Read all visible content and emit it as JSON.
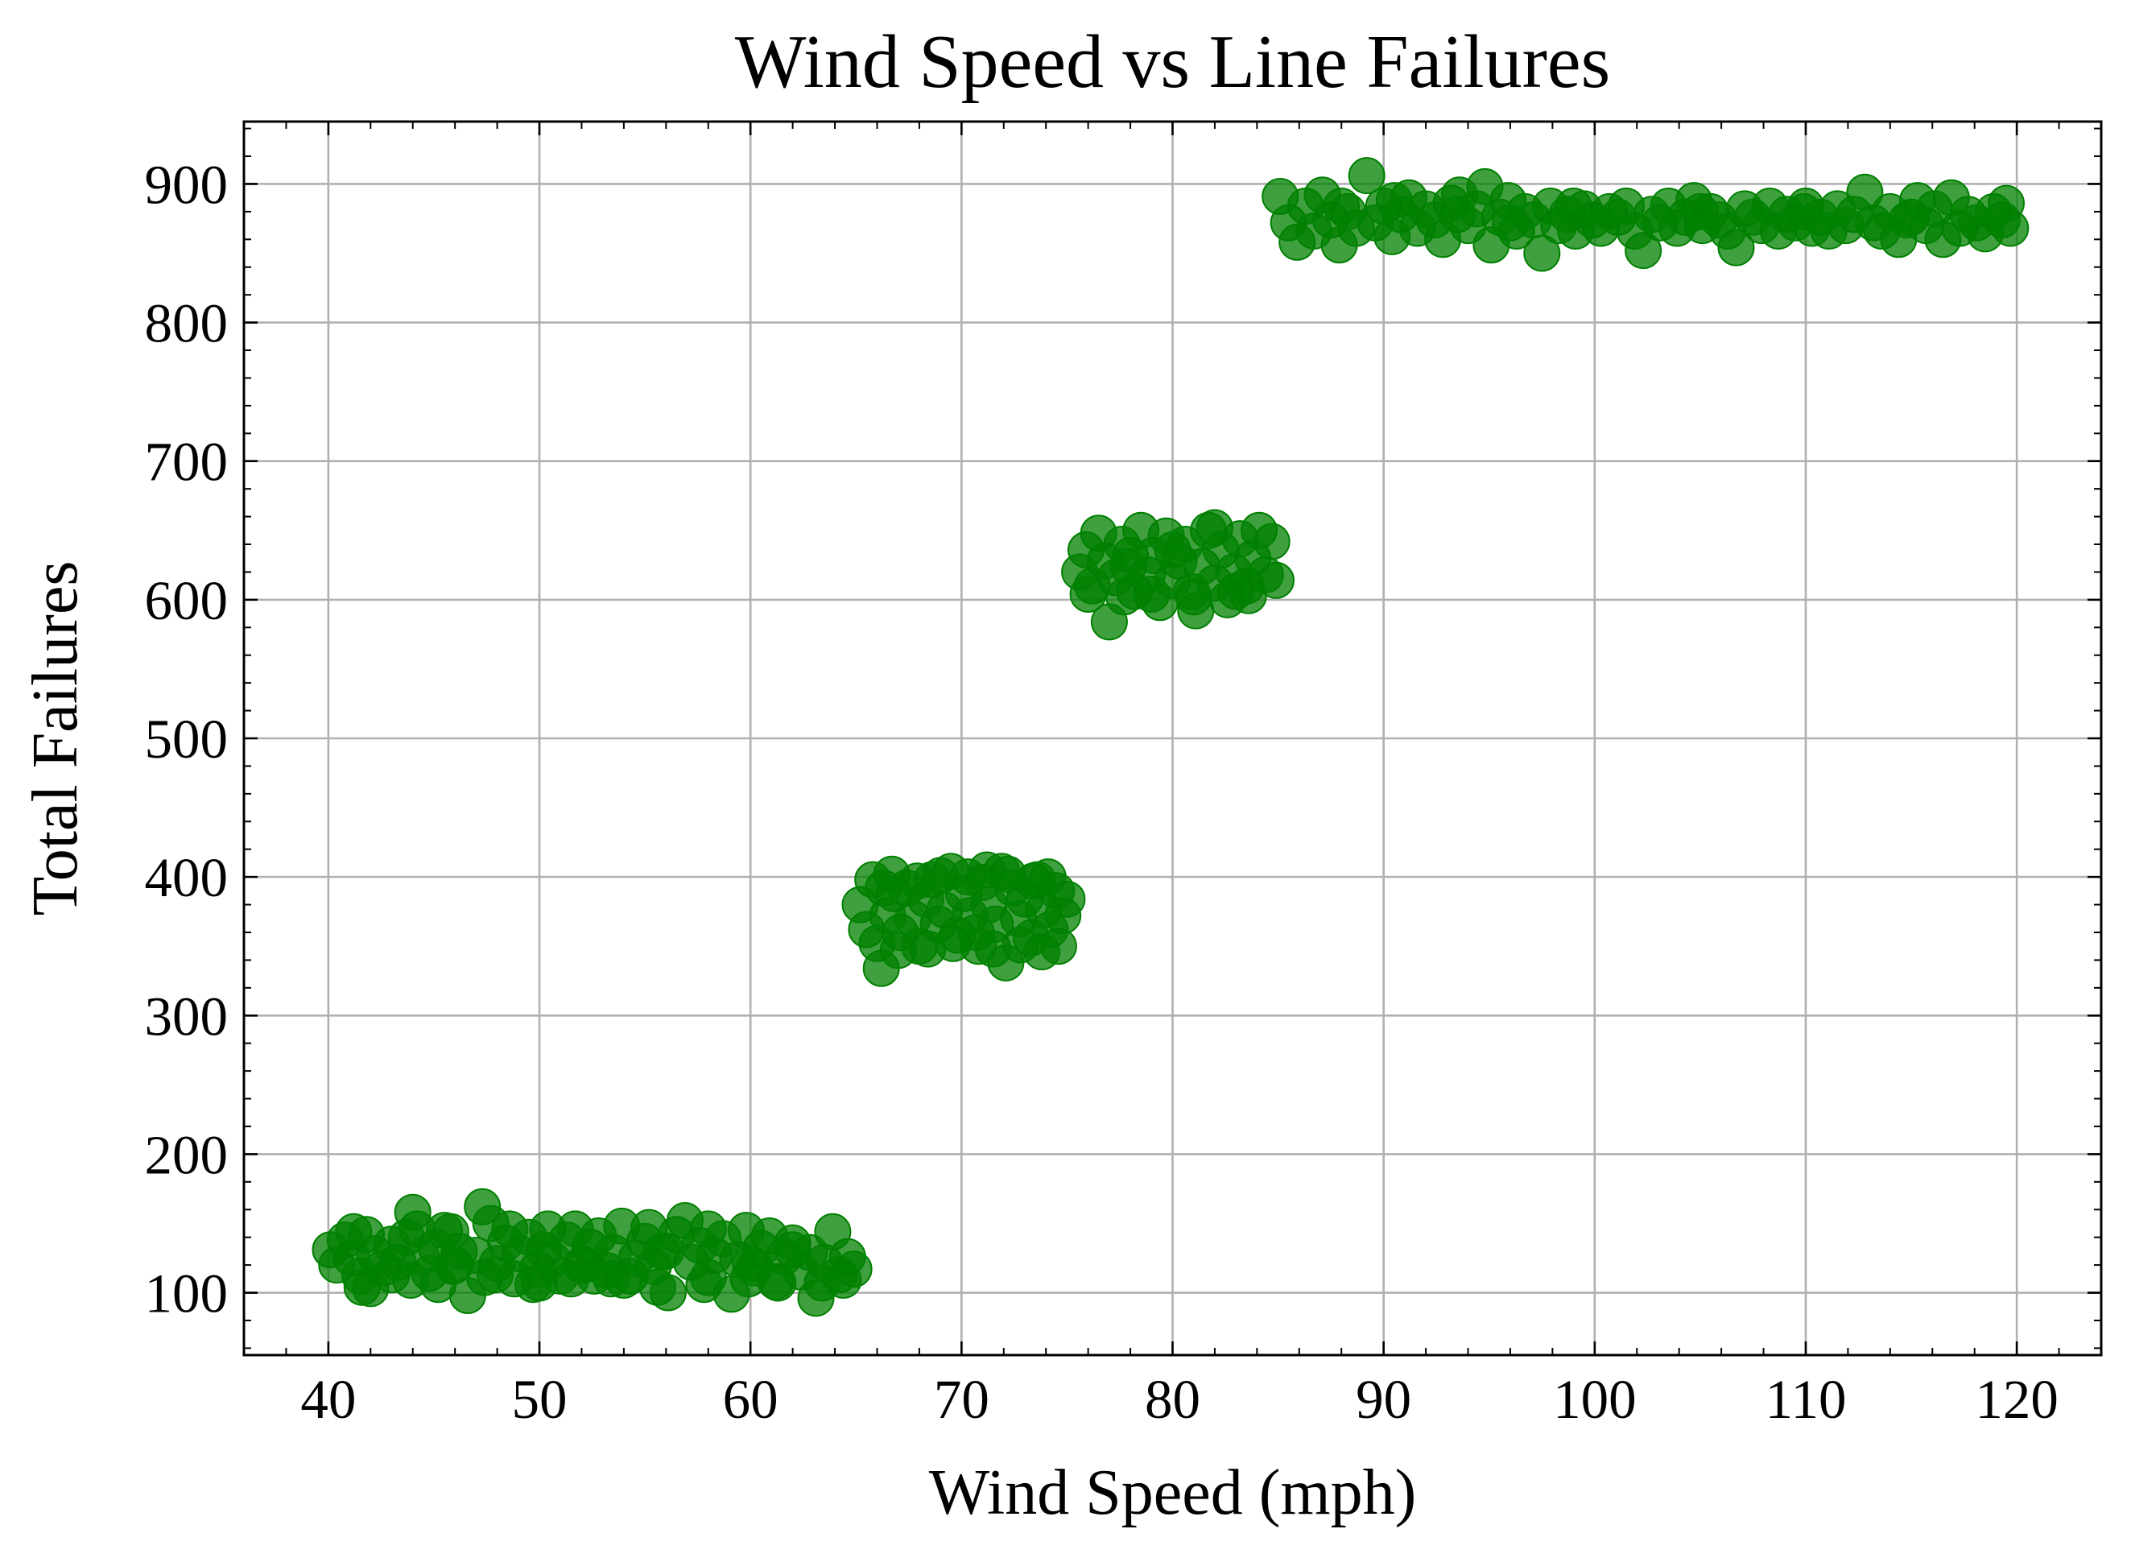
{
  "chart_data": {
    "type": "scatter",
    "title": "Wind Speed vs Line Failures",
    "xlabel": "Wind Speed (mph)",
    "ylabel": "Total Failures",
    "xlim": [
      36,
      124
    ],
    "ylim": [
      55,
      945
    ],
    "x_ticks": [
      40,
      50,
      60,
      70,
      80,
      90,
      100,
      110,
      120
    ],
    "y_ticks": [
      100,
      200,
      300,
      400,
      500,
      600,
      700,
      800,
      900
    ],
    "x_tick_labels": [
      "40",
      "50",
      "60",
      "70",
      "80",
      "90",
      "100",
      "110",
      "120"
    ],
    "y_tick_labels": [
      "100",
      "200",
      "300",
      "400",
      "500",
      "600",
      "700",
      "800",
      "900"
    ],
    "grid": true,
    "legend": "none",
    "marker_color": "#008000",
    "marker_alpha": 0.75,
    "series": [
      {
        "points": [
          [
            40.1,
            131
          ],
          [
            40.4,
            120
          ],
          [
            40.8,
            138
          ],
          [
            41.1,
            125
          ],
          [
            41.5,
            112
          ],
          [
            41.8,
            142
          ],
          [
            42.2,
            128
          ],
          [
            42.6,
            118
          ],
          [
            43.0,
            135
          ],
          [
            43.3,
            122
          ],
          [
            43.7,
            140
          ],
          [
            44.0,
            158
          ],
          [
            44.4,
            126
          ],
          [
            44.8,
            114
          ],
          [
            45.1,
            133
          ],
          [
            45.5,
            145
          ],
          [
            45.9,
            119
          ],
          [
            46.2,
            130
          ],
          [
            46.6,
            98
          ],
          [
            47.0,
            127
          ],
          [
            47.3,
            162
          ],
          [
            47.7,
            150
          ],
          [
            48.0,
            121
          ],
          [
            48.4,
            136
          ],
          [
            48.8,
            110
          ],
          [
            49.1,
            128
          ],
          [
            49.5,
            140
          ],
          [
            49.9,
            117
          ],
          [
            50.2,
            131
          ],
          [
            50.6,
            124
          ],
          [
            51.0,
            112
          ],
          [
            51.3,
            138
          ],
          [
            51.7,
            146
          ],
          [
            52.1,
            120
          ],
          [
            52.4,
            133
          ],
          [
            52.8,
            141
          ],
          [
            53.2,
            116
          ],
          [
            53.5,
            129
          ],
          [
            53.9,
            148
          ],
          [
            54.3,
            112
          ],
          [
            54.6,
            125
          ],
          [
            55.0,
            137
          ],
          [
            55.4,
            119
          ],
          [
            55.8,
            130
          ],
          [
            56.1,
            100
          ],
          [
            56.5,
            142
          ],
          [
            56.9,
            152
          ],
          [
            57.2,
            122
          ],
          [
            57.6,
            134
          ],
          [
            58.0,
            111
          ],
          [
            58.3,
            127
          ],
          [
            58.7,
            139
          ],
          [
            59.1,
            99
          ],
          [
            59.4,
            124
          ],
          [
            59.8,
            145
          ],
          [
            60.2,
            118
          ],
          [
            60.5,
            132
          ],
          [
            60.9,
            141
          ],
          [
            61.3,
            107
          ],
          [
            61.6,
            126
          ],
          [
            62.0,
            136
          ],
          [
            62.4,
            115
          ],
          [
            62.8,
            129
          ],
          [
            63.1,
            96
          ],
          [
            63.5,
            122
          ],
          [
            63.9,
            144
          ],
          [
            64.2,
            113
          ],
          [
            64.6,
            126
          ],
          [
            64.9,
            117
          ],
          [
            42.0,
            103
          ],
          [
            44.2,
            146
          ],
          [
            46.0,
            120
          ],
          [
            48.6,
            146
          ],
          [
            50.0,
            107
          ],
          [
            52.0,
            120
          ],
          [
            54.0,
            109
          ],
          [
            56.0,
            130
          ],
          [
            58.0,
            146
          ],
          [
            60.0,
            121
          ],
          [
            62.0,
            131
          ],
          [
            41.6,
            104
          ],
          [
            43.9,
            109
          ],
          [
            45.2,
            106
          ],
          [
            47.4,
            111
          ],
          [
            49.7,
            106
          ],
          [
            51.5,
            110
          ],
          [
            53.4,
            110
          ],
          [
            55.6,
            104
          ],
          [
            57.8,
            106
          ],
          [
            59.9,
            110
          ],
          [
            61.2,
            108
          ],
          [
            63.4,
            107
          ],
          [
            64.4,
            109
          ],
          [
            41.2,
            144
          ],
          [
            43.0,
            113
          ],
          [
            45.8,
            144
          ],
          [
            47.9,
            113
          ],
          [
            50.4,
            146
          ],
          [
            52.6,
            112
          ],
          [
            55.2,
            147
          ]
        ]
      },
      {
        "points": [
          [
            65.2,
            380
          ],
          [
            65.5,
            362
          ],
          [
            65.8,
            398
          ],
          [
            66.0,
            352
          ],
          [
            66.2,
            334
          ],
          [
            66.5,
            372
          ],
          [
            66.8,
            388
          ],
          [
            67.1,
            360
          ],
          [
            67.4,
            392
          ],
          [
            67.7,
            370
          ],
          [
            68.0,
            350
          ],
          [
            68.3,
            384
          ],
          [
            68.6,
            398
          ],
          [
            68.9,
            366
          ],
          [
            69.2,
            376
          ],
          [
            69.5,
            404
          ],
          [
            69.8,
            358
          ],
          [
            70.1,
            388
          ],
          [
            70.4,
            372
          ],
          [
            70.7,
            360
          ],
          [
            71.0,
            396
          ],
          [
            71.3,
            380
          ],
          [
            71.6,
            366
          ],
          [
            71.9,
            404
          ],
          [
            72.1,
            338
          ],
          [
            72.4,
            392
          ],
          [
            72.7,
            370
          ],
          [
            73.0,
            384
          ],
          [
            73.3,
            356
          ],
          [
            73.6,
            398
          ],
          [
            73.9,
            376
          ],
          [
            74.2,
            362
          ],
          [
            74.5,
            390
          ],
          [
            74.8,
            372
          ],
          [
            75.0,
            384
          ],
          [
            66.3,
            392
          ],
          [
            67.0,
            347
          ],
          [
            68.4,
            348
          ],
          [
            69.6,
            352
          ],
          [
            70.8,
            350
          ],
          [
            71.5,
            348
          ],
          [
            72.8,
            351
          ],
          [
            73.8,
            346
          ],
          [
            74.6,
            350
          ],
          [
            66.7,
            402
          ],
          [
            67.9,
            397
          ],
          [
            69.0,
            401
          ],
          [
            70.3,
            400
          ],
          [
            71.2,
            405
          ],
          [
            72.2,
            402
          ],
          [
            73.4,
            397
          ],
          [
            74.1,
            400
          ]
        ]
      },
      {
        "points": [
          [
            75.6,
            620
          ],
          [
            75.9,
            636
          ],
          [
            76.2,
            610
          ],
          [
            76.5,
            648
          ],
          [
            76.8,
            628
          ],
          [
            77.0,
            584
          ],
          [
            77.3,
            616
          ],
          [
            77.6,
            640
          ],
          [
            77.9,
            624
          ],
          [
            78.2,
            606
          ],
          [
            78.5,
            650
          ],
          [
            78.8,
            618
          ],
          [
            79.1,
            632
          ],
          [
            79.4,
            598
          ],
          [
            79.7,
            646
          ],
          [
            80.0,
            614
          ],
          [
            80.3,
            628
          ],
          [
            80.6,
            640
          ],
          [
            80.9,
            606
          ],
          [
            81.1,
            592
          ],
          [
            81.4,
            624
          ],
          [
            81.7,
            650
          ],
          [
            82.0,
            612
          ],
          [
            82.3,
            636
          ],
          [
            82.6,
            600
          ],
          [
            82.9,
            620
          ],
          [
            83.2,
            644
          ],
          [
            83.5,
            610
          ],
          [
            83.8,
            630
          ],
          [
            84.1,
            650
          ],
          [
            84.4,
            618
          ],
          [
            84.7,
            642
          ],
          [
            84.9,
            614
          ],
          [
            76.0,
            604
          ],
          [
            78.0,
            632
          ],
          [
            80.0,
            636
          ],
          [
            82.0,
            652
          ],
          [
            83.0,
            606
          ],
          [
            77.7,
            602
          ],
          [
            79.0,
            604
          ],
          [
            81.0,
            602
          ],
          [
            83.6,
            603
          ]
        ]
      },
      {
        "points": [
          [
            85.1,
            891
          ],
          [
            85.5,
            872
          ],
          [
            85.9,
            858
          ],
          [
            86.3,
            884
          ],
          [
            86.7,
            866
          ],
          [
            87.1,
            892
          ],
          [
            87.5,
            874
          ],
          [
            87.9,
            856
          ],
          [
            88.3,
            880
          ],
          [
            88.7,
            868
          ],
          [
            89.2,
            906
          ],
          [
            89.6,
            872
          ],
          [
            90.0,
            884
          ],
          [
            90.4,
            862
          ],
          [
            90.8,
            878
          ],
          [
            91.2,
            890
          ],
          [
            91.6,
            868
          ],
          [
            92.0,
            882
          ],
          [
            92.4,
            874
          ],
          [
            92.8,
            860
          ],
          [
            93.2,
            886
          ],
          [
            93.6,
            892
          ],
          [
            94.0,
            870
          ],
          [
            94.4,
            882
          ],
          [
            94.8,
            898
          ],
          [
            95.1,
            856
          ],
          [
            95.5,
            876
          ],
          [
            95.9,
            888
          ],
          [
            96.3,
            866
          ],
          [
            96.7,
            880
          ],
          [
            97.1,
            874
          ],
          [
            97.5,
            850
          ],
          [
            97.9,
            884
          ],
          [
            98.3,
            870
          ],
          [
            98.7,
            878
          ],
          [
            99.1,
            866
          ],
          [
            99.5,
            882
          ],
          [
            99.9,
            874
          ],
          [
            100.3,
            868
          ],
          [
            100.7,
            880
          ],
          [
            101.1,
            876
          ],
          [
            101.5,
            884
          ],
          [
            101.9,
            866
          ],
          [
            102.3,
            852
          ],
          [
            102.7,
            878
          ],
          [
            103.1,
            872
          ],
          [
            103.5,
            884
          ],
          [
            103.9,
            868
          ],
          [
            104.3,
            876
          ],
          [
            104.7,
            888
          ],
          [
            105.1,
            870
          ],
          [
            105.5,
            880
          ],
          [
            105.9,
            874
          ],
          [
            106.3,
            866
          ],
          [
            106.7,
            854
          ],
          [
            107.1,
            882
          ],
          [
            107.5,
            876
          ],
          [
            107.9,
            870
          ],
          [
            108.3,
            884
          ],
          [
            108.7,
            866
          ],
          [
            109.1,
            878
          ],
          [
            109.5,
            872
          ],
          [
            109.9,
            880
          ],
          [
            110.3,
            868
          ],
          [
            110.7,
            876
          ],
          [
            111.1,
            866
          ],
          [
            111.5,
            882
          ],
          [
            111.9,
            870
          ],
          [
            112.3,
            878
          ],
          [
            112.8,
            894
          ],
          [
            113.2,
            872
          ],
          [
            113.6,
            866
          ],
          [
            114.0,
            880
          ],
          [
            114.4,
            860
          ],
          [
            114.8,
            874
          ],
          [
            115.3,
            888
          ],
          [
            115.7,
            870
          ],
          [
            116.1,
            882
          ],
          [
            116.5,
            860
          ],
          [
            116.9,
            890
          ],
          [
            117.3,
            868
          ],
          [
            117.7,
            878
          ],
          [
            118.1,
            872
          ],
          [
            118.5,
            864
          ],
          [
            118.9,
            880
          ],
          [
            119.3,
            874
          ],
          [
            119.7,
            868
          ],
          [
            88.0,
            884
          ],
          [
            90.5,
            888
          ],
          [
            93.5,
            878
          ],
          [
            96.0,
            872
          ],
          [
            99.0,
            884
          ],
          [
            105.0,
            880
          ],
          [
            110.0,
            884
          ],
          [
            115.0,
            876
          ],
          [
            119.5,
            886
          ]
        ]
      }
    ]
  }
}
